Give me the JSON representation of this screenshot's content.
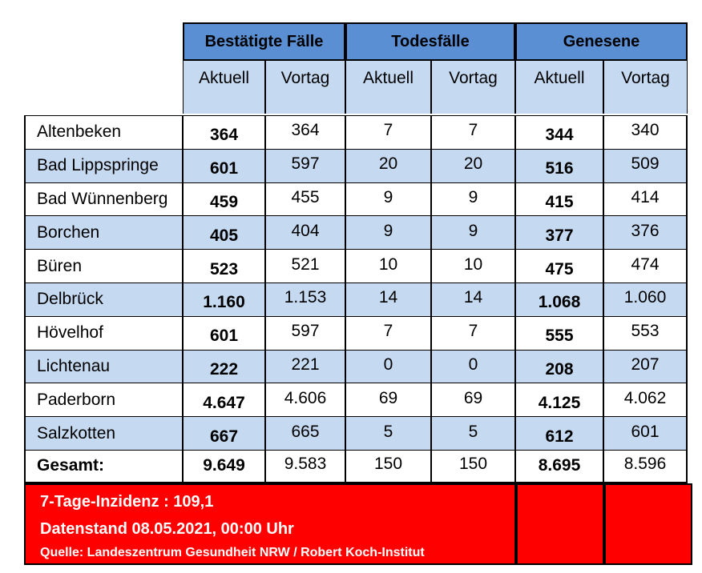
{
  "table": {
    "groups": [
      "Bestätigte Fälle",
      "Todesfälle",
      "Genesene"
    ],
    "subheaders": [
      "Aktuell",
      "Vortag",
      "Aktuell",
      "Vortag",
      "Aktuell",
      "Vortag"
    ],
    "rows": [
      {
        "name": "Altenbeken",
        "values": [
          "364",
          "364",
          "7",
          "7",
          "344",
          "340"
        ]
      },
      {
        "name": "Bad Lippspringe",
        "values": [
          "601",
          "597",
          "20",
          "20",
          "516",
          "509"
        ]
      },
      {
        "name": "Bad Wünnenberg",
        "values": [
          "459",
          "455",
          "9",
          "9",
          "415",
          "414"
        ]
      },
      {
        "name": "Borchen",
        "values": [
          "405",
          "404",
          "9",
          "9",
          "377",
          "376"
        ]
      },
      {
        "name": "Büren",
        "values": [
          "523",
          "521",
          "10",
          "10",
          "475",
          "474"
        ]
      },
      {
        "name": "Delbrück",
        "values": [
          "1.160",
          "1.153",
          "14",
          "14",
          "1.068",
          "1.060"
        ]
      },
      {
        "name": "Hövelhof",
        "values": [
          "601",
          "597",
          "7",
          "7",
          "555",
          "553"
        ]
      },
      {
        "name": "Lichtenau",
        "values": [
          "222",
          "221",
          "0",
          "0",
          "208",
          "207"
        ]
      },
      {
        "name": "Paderborn",
        "values": [
          "4.647",
          "4.606",
          "69",
          "69",
          "4.125",
          "4.062"
        ]
      },
      {
        "name": "Salzkotten",
        "values": [
          "667",
          "665",
          "5",
          "5",
          "612",
          "601"
        ]
      }
    ],
    "total": {
      "name": "Gesamt:",
      "values": [
        "9.649",
        "9.583",
        "150",
        "150",
        "8.695",
        "8.596"
      ]
    }
  },
  "footer": {
    "incidence": "7-Tage-Inzidenz : 109,1",
    "date": "Datenstand 08.05.2021, 00:00 Uhr",
    "source": "Quelle: Landeszentrum Gesundheit NRW / Robert Koch-Institut"
  },
  "colors": {
    "header_blue": "#5b8fd4",
    "light_blue": "#c5d9f1",
    "red": "#ff0000"
  }
}
